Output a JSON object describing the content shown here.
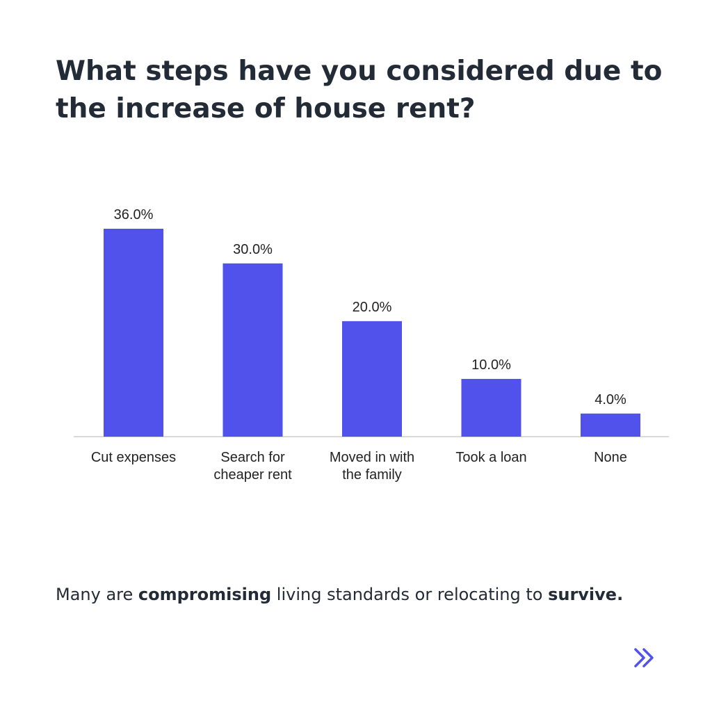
{
  "title_lines": [
    "What steps have you considered due to",
    "the increase of house rent?"
  ],
  "caption": {
    "part1": "Many are ",
    "bold1": "compromising",
    "part2": " living standards or relocating to ",
    "bold2": "survive."
  },
  "colors": {
    "bar": "#5152ec",
    "axis": "#d9d9d9",
    "accent": "#5152ec"
  },
  "icons": {
    "next": "double-chevron-right-icon"
  },
  "chart_data": {
    "type": "bar",
    "categories": [
      [
        "Cut expenses"
      ],
      [
        "Search for",
        "cheaper rent"
      ],
      [
        "Moved in with",
        "the family"
      ],
      [
        "Took a loan"
      ],
      [
        "None"
      ]
    ],
    "values": [
      36.0,
      30.0,
      20.0,
      10.0,
      4.0
    ],
    "value_labels": [
      "36.0%",
      "30.0%",
      "20.0%",
      "10.0%",
      "4.0%"
    ],
    "ylim": [
      0,
      36
    ],
    "grid": false,
    "legend": "none"
  }
}
